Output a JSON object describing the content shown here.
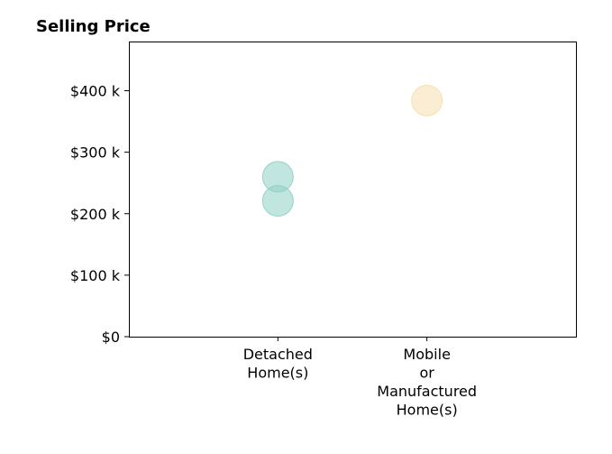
{
  "chart_data": {
    "type": "scatter",
    "title": "Selling Price",
    "xlabel": "",
    "ylabel": "",
    "categories": [
      [
        "Detached",
        "Home(s)"
      ],
      [
        "Mobile",
        "or",
        "Manufactured",
        "Home(s)"
      ]
    ],
    "x_range": [
      -1,
      2
    ],
    "ylim": [
      0,
      480000
    ],
    "y_ticks": [
      0,
      100000,
      200000,
      300000,
      400000
    ],
    "y_tick_labels": [
      "$0",
      "$100 k",
      "$200 k",
      "$300 k",
      "$400 k"
    ],
    "grid": false,
    "legend": "none",
    "points": [
      {
        "category_index": 0,
        "y": 260000,
        "color": "#8ecfc5"
      },
      {
        "category_index": 0,
        "y": 221000,
        "color": "#8ecfc5"
      },
      {
        "category_index": 1,
        "y": 384000,
        "color": "#f5dfb0"
      }
    ],
    "point_opacity": 0.55
  }
}
